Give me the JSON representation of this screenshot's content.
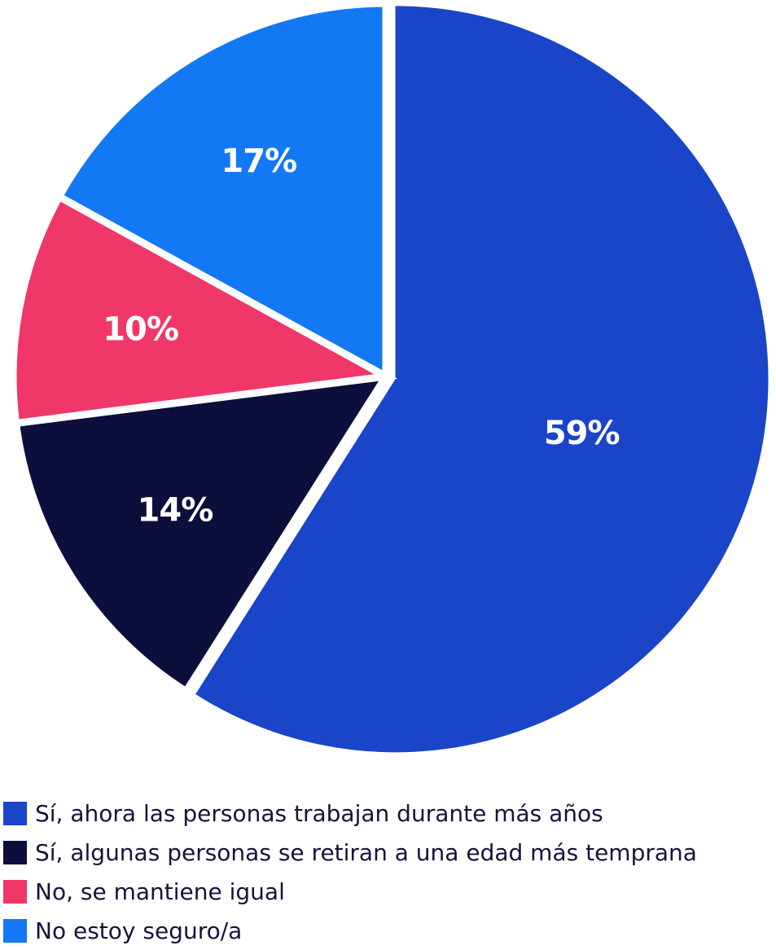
{
  "chart_data": {
    "type": "pie",
    "categories": [
      "Sí, ahora las personas trabajan durante más años",
      "Sí, algunas personas se retiran a una edad más temprana",
      "No, se mantiene igual",
      "No estoy seguro/a"
    ],
    "values": [
      59,
      14,
      10,
      17
    ],
    "value_labels": [
      "59%",
      "14%",
      "10%",
      "17%"
    ],
    "colors": [
      "#1a45c8",
      "#0c0f3c",
      "#f03868",
      "#1278f4"
    ],
    "start_angle_deg": 0,
    "direction": "clockwise",
    "exploded_slice": "Sí, ahora las personas trabajan durante más años",
    "legend_position": "bottom-left",
    "title": ""
  }
}
